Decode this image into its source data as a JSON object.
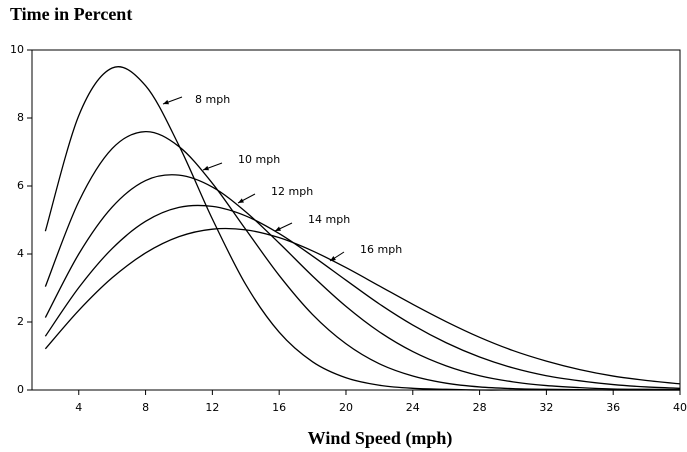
{
  "chart_data": {
    "type": "line",
    "title": "Time in Percent",
    "xlabel": "Wind Speed (mph)",
    "x": [
      2,
      4,
      6,
      8,
      10,
      12,
      14,
      16,
      18,
      20,
      22,
      24,
      26,
      28,
      30,
      32,
      34,
      36,
      38,
      40
    ],
    "series": [
      {
        "name": "8 mph",
        "color": "#000000",
        "values": [
          4.67,
          8.07,
          9.47,
          8.95,
          7.19,
          5.03,
          3.1,
          1.7,
          0.83,
          0.36,
          0.14,
          0.05,
          0.02,
          0,
          0,
          0,
          0,
          0,
          0,
          0
        ]
      },
      {
        "name": "10 mph",
        "color": "#000000",
        "values": [
          3.04,
          5.54,
          7.1,
          7.6,
          7.16,
          6.08,
          4.72,
          3.37,
          2.22,
          1.36,
          0.77,
          0.41,
          0.2,
          0.09,
          0.04,
          0.02,
          0.01,
          0,
          0,
          0
        ]
      },
      {
        "name": "12 mph",
        "color": "#000000",
        "values": [
          2.13,
          4.0,
          5.38,
          6.16,
          6.32,
          5.97,
          5.24,
          4.32,
          3.35,
          2.46,
          1.71,
          1.13,
          0.71,
          0.42,
          0.24,
          0.13,
          0.07,
          0.03,
          0.02,
          0.01
        ]
      },
      {
        "name": "14 mph",
        "color": "#000000",
        "values": [
          1.58,
          3.01,
          4.16,
          4.96,
          5.37,
          5.4,
          5.12,
          4.6,
          3.94,
          3.23,
          2.53,
          1.91,
          1.39,
          0.97,
          0.65,
          0.42,
          0.27,
          0.16,
          0.09,
          0.05
        ]
      },
      {
        "name": "16 mph",
        "color": "#000000",
        "values": [
          1.21,
          2.34,
          3.3,
          4.03,
          4.51,
          4.73,
          4.71,
          4.48,
          4.09,
          3.6,
          3.06,
          2.52,
          2.01,
          1.55,
          1.16,
          0.85,
          0.6,
          0.41,
          0.28,
          0.18
        ]
      }
    ],
    "xlim": [
      1.2,
      40
    ],
    "xticks": [
      4,
      8,
      12,
      16,
      20,
      24,
      28,
      32,
      36,
      40
    ],
    "ylim": [
      0,
      10
    ],
    "yticks": [
      0,
      2,
      4,
      6,
      8,
      10
    ],
    "grid": false
  }
}
